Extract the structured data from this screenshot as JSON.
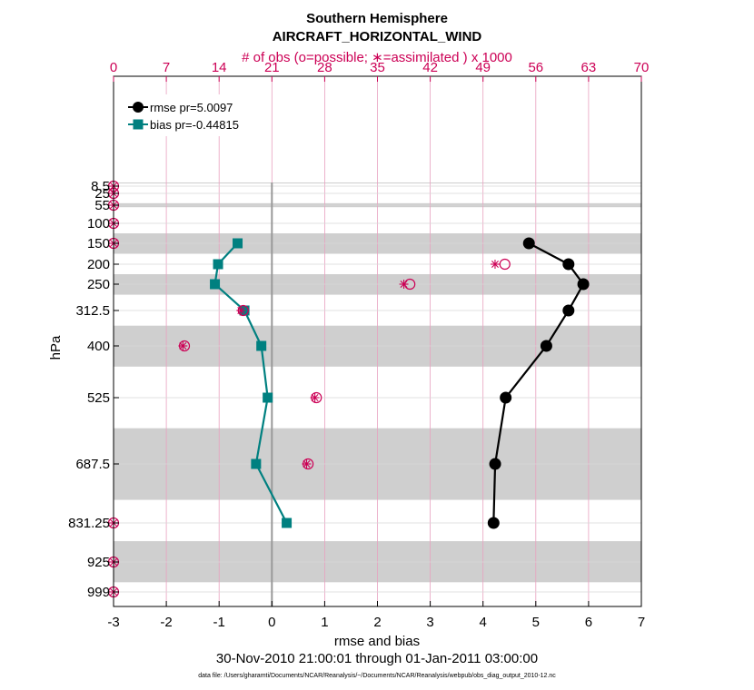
{
  "chart_data": {
    "type": "line",
    "title": "Southern Hemisphere",
    "subtitle": "AIRCRAFT_HORIZONTAL_WIND",
    "top_axis_label": "# of obs (o=possible; ∗=assimilated ) x 1000",
    "xlabel": "rmse and bias",
    "ylabel": "hPa",
    "date_range": "30-Nov-2010 21:00:01 through 01-Jan-2011 03:00:00",
    "footnote": "data file: /Users/gharamti/Documents/NCAR/Reanalysis/~/Documents/NCAR/Reanalysis/webpub/obs_diag_output_2010-12.nc",
    "xlim": [
      -3,
      7
    ],
    "x_ticks": [
      "-3",
      "-2",
      "-1",
      "0",
      "1",
      "2",
      "3",
      "4",
      "5",
      "6",
      "7"
    ],
    "top_xlim": [
      0,
      70
    ],
    "top_ticks": [
      "0",
      "7",
      "14",
      "21",
      "28",
      "35",
      "42",
      "49",
      "56",
      "63",
      "70"
    ],
    "y_ticks": [
      "8.5",
      "25",
      "55",
      "100",
      "150",
      "200",
      "250",
      "312.5",
      "400",
      "525",
      "687.5",
      "831.25",
      "925",
      "999"
    ],
    "bands": [
      [
        1,
        3
      ],
      [
        50,
        60
      ],
      [
        125,
        175
      ],
      [
        225,
        275
      ],
      [
        350,
        450
      ],
      [
        600,
        775
      ],
      [
        875,
        975
      ]
    ],
    "legend": {
      "location": "top-left",
      "entries": [
        "rmse pr=5.0097",
        "bias pr=-0.44815"
      ]
    },
    "series": [
      {
        "name": "rmse pr=5.0097",
        "color": "#000000",
        "marker": "circle",
        "levels": [
          150,
          200,
          250,
          312.5,
          400,
          525,
          687.5,
          831.25
        ],
        "values": [
          4.87,
          5.62,
          5.9,
          5.62,
          5.2,
          4.43,
          4.23,
          4.2
        ]
      },
      {
        "name": "bias pr=-0.44815",
        "color": "#008080",
        "marker": "square",
        "levels": [
          150,
          200,
          250,
          312.5,
          400,
          525,
          687.5,
          831.25
        ],
        "values": [
          -0.65,
          -1.02,
          -1.08,
          -0.52,
          -0.2,
          -0.08,
          -0.3,
          0.28
        ]
      }
    ],
    "obs_counts": {
      "color": "#cc0055",
      "levels": [
        8.5,
        25,
        55,
        100,
        150,
        200,
        250,
        312.5,
        400,
        525,
        687.5,
        831.25,
        925,
        999
      ],
      "possible": [
        0,
        0,
        0,
        0,
        0,
        51.9,
        39.3,
        17.2,
        9.4,
        26.9,
        25.8,
        0,
        0,
        0
      ],
      "assimilated": [
        0,
        0,
        0,
        0,
        0,
        50.6,
        38.5,
        16.9,
        9.2,
        26.7,
        25.6,
        0,
        0,
        0
      ]
    }
  }
}
